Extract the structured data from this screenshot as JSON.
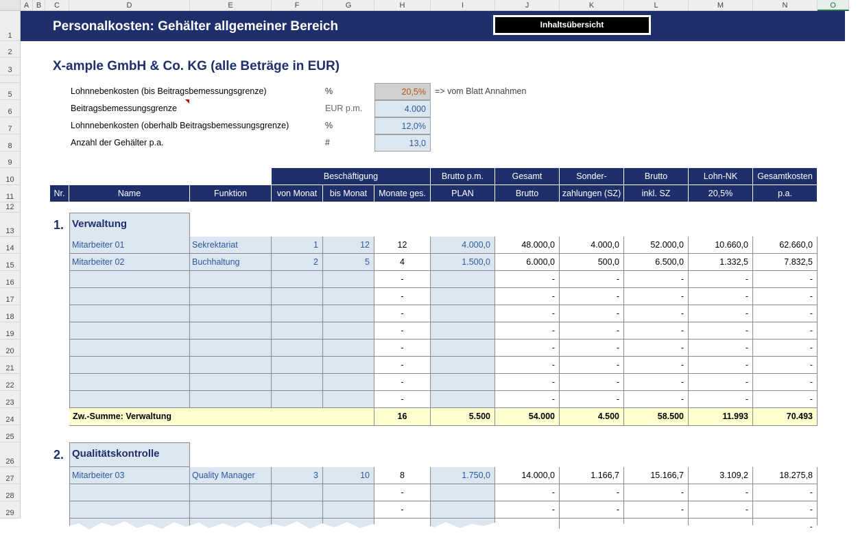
{
  "columns": [
    "A",
    "B",
    "C",
    "D",
    "E",
    "F",
    "G",
    "H",
    "I",
    "J",
    "K",
    "L",
    "M",
    "N",
    "O"
  ],
  "rows": [
    "1",
    "2",
    "3",
    "",
    "5",
    "6",
    "7",
    "8",
    "9",
    "10",
    "11",
    "12",
    "13",
    "14",
    "15",
    "16",
    "17",
    "18",
    "19",
    "20",
    "21",
    "22",
    "23",
    "24",
    "25",
    "26",
    "27",
    "28",
    "29"
  ],
  "title": "Personalkosten: Gehälter allgemeiner Bereich",
  "nav_button": "Inhaltsübersicht",
  "company": "X-ample GmbH & Co. KG (alle Beträge in EUR)",
  "params": [
    {
      "label": "Lohnnebenkosten (bis Beitragsbemessungsgrenze)",
      "unit": "%",
      "value": "20,5%"
    },
    {
      "label": "Beitragsbemessungsgrenze",
      "unit": "EUR p.m.",
      "value": "4.000"
    },
    {
      "label": "Lohnnebenkosten (oberhalb Beitragsbemessungsgrenze)",
      "unit": "%",
      "value": "12,0%"
    },
    {
      "label": "Anzahl der Gehälter p.a.",
      "unit": "#",
      "value": "13,0"
    }
  ],
  "param_note": "=> vom Blatt Annahmen",
  "header": {
    "beschaeftigung": "Beschäftigung",
    "nr": "Nr.",
    "name": "Name",
    "funktion": "Funktion",
    "von": "von Monat",
    "bis": "bis Monat",
    "monate": "Monate ges.",
    "brutto_pm_1": "Brutto p.m.",
    "brutto_pm_2": "PLAN",
    "gesamt_1": "Gesamt",
    "gesamt_2": "Brutto",
    "sonder_1": "Sonder-",
    "sonder_2": "zahlungen (SZ)",
    "inkl_1": "Brutto",
    "inkl_2": "inkl. SZ",
    "nk_1": "Lohn-NK",
    "nk_2": "20,5%",
    "total_1": "Gesamtkosten",
    "total_2": "p.a."
  },
  "sections": [
    {
      "num": "1.",
      "title": "Verwaltung",
      "rows": [
        [
          "Mitarbeiter 01",
          "Sekrektariat",
          "1",
          "12",
          "12",
          "4.000,0",
          "48.000,0",
          "4.000,0",
          "52.000,0",
          "10.660,0",
          "62.660,0"
        ],
        [
          "Mitarbeiter 02",
          "Buchhaltung",
          "2",
          "5",
          "4",
          "1.500,0",
          "6.000,0",
          "500,0",
          "6.500,0",
          "1.332,5",
          "7.832,5"
        ],
        [
          "",
          "",
          "",
          "",
          "-",
          "",
          "-",
          "-",
          "-",
          "-",
          "-"
        ],
        [
          "",
          "",
          "",
          "",
          "-",
          "",
          "-",
          "-",
          "-",
          "-",
          "-"
        ],
        [
          "",
          "",
          "",
          "",
          "-",
          "",
          "-",
          "-",
          "-",
          "-",
          "-"
        ],
        [
          "",
          "",
          "",
          "",
          "-",
          "",
          "-",
          "-",
          "-",
          "-",
          "-"
        ],
        [
          "",
          "",
          "",
          "",
          "-",
          "",
          "-",
          "-",
          "-",
          "-",
          "-"
        ],
        [
          "",
          "",
          "",
          "",
          "-",
          "",
          "-",
          "-",
          "-",
          "-",
          "-"
        ],
        [
          "",
          "",
          "",
          "",
          "-",
          "",
          "-",
          "-",
          "-",
          "-",
          "-"
        ],
        [
          "",
          "",
          "",
          "",
          "-",
          "",
          "-",
          "-",
          "-",
          "-",
          "-"
        ]
      ],
      "subtotal": {
        "label": "Zw.-Summe: Verwaltung",
        "values": [
          "16",
          "5.500",
          "54.000",
          "4.500",
          "58.500",
          "11.993",
          "70.493"
        ]
      }
    },
    {
      "num": "2.",
      "title": "Qualitätskontrolle",
      "rows": [
        [
          "Mitarbeiter 03",
          "Quality Manager",
          "3",
          "10",
          "8",
          "1.750,0",
          "14.000,0",
          "1.166,7",
          "15.166,7",
          "3.109,2",
          "18.275,8"
        ],
        [
          "",
          "",
          "",
          "",
          "-",
          "",
          "-",
          "-",
          "-",
          "-",
          "-"
        ],
        [
          "",
          "",
          "",
          "",
          "-",
          "",
          "-",
          "-",
          "-",
          "-",
          "-"
        ],
        [
          "",
          "",
          "",
          "",
          "-",
          "",
          "-",
          "-",
          "-",
          "-",
          "-"
        ]
      ]
    }
  ]
}
